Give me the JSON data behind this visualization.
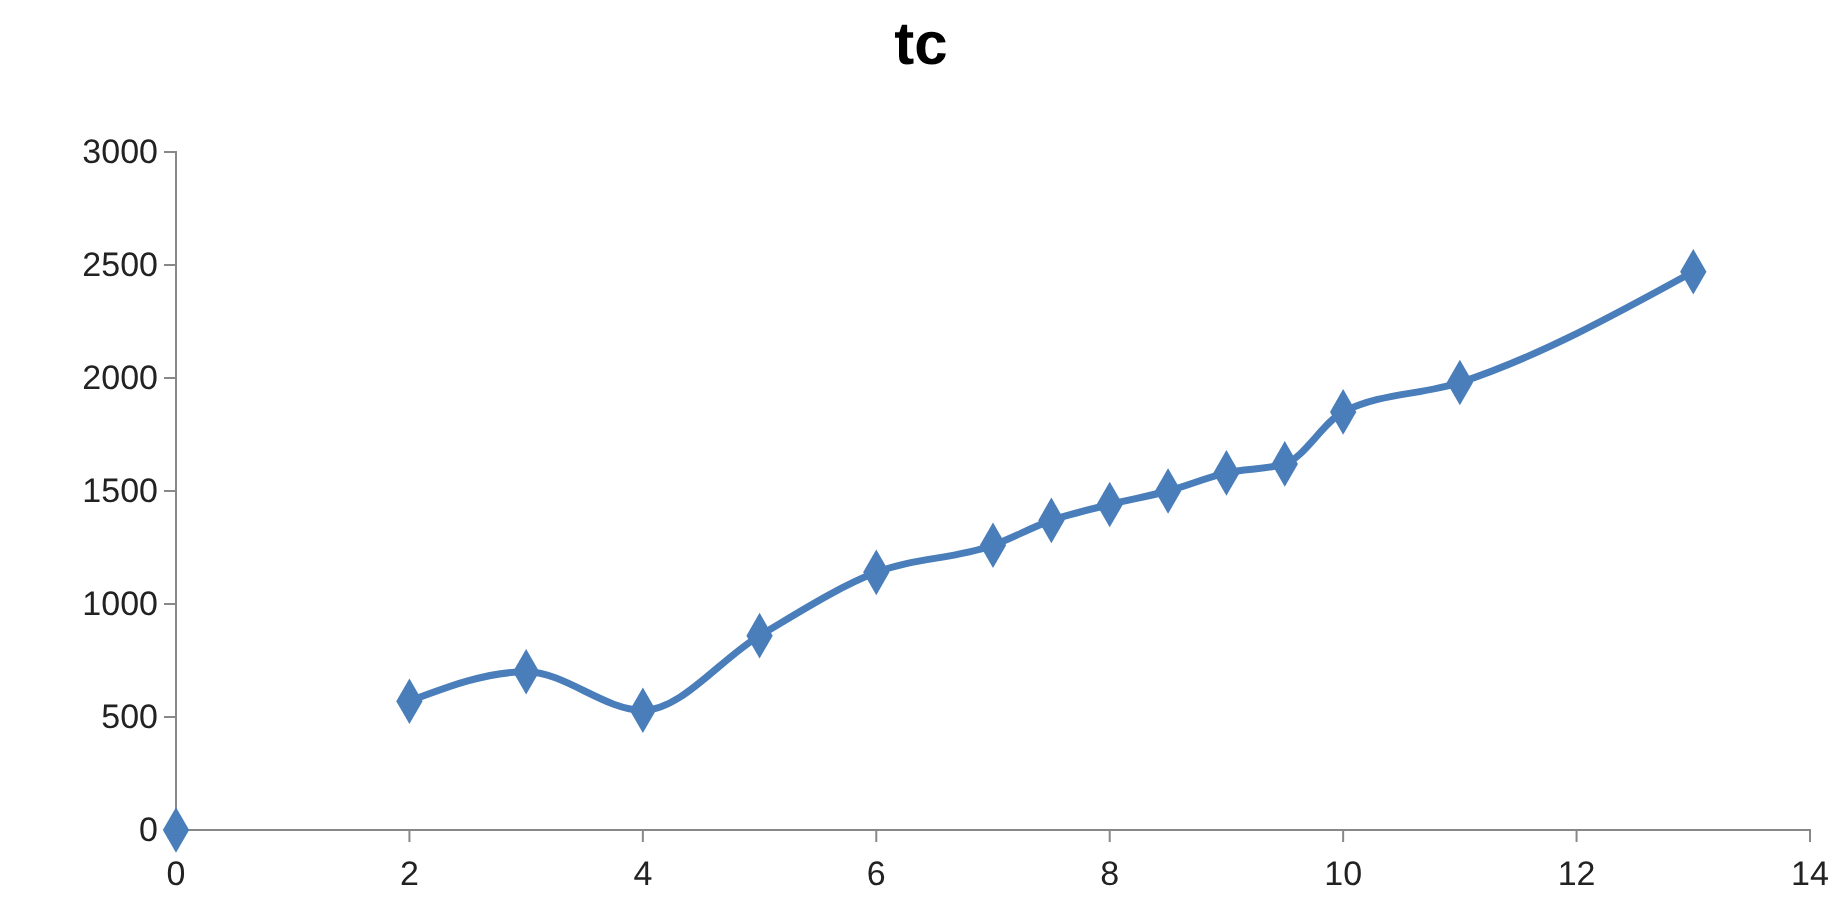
{
  "chart_data": {
    "type": "line",
    "title": "tc",
    "marker": "diamond",
    "line_style": "solid",
    "grid": false,
    "xlim": [
      0,
      14
    ],
    "xticks": [
      0,
      2,
      4,
      6,
      8,
      10,
      12,
      14
    ],
    "ylim": [
      0,
      3000
    ],
    "yticks": [
      0,
      500,
      1000,
      1500,
      2000,
      2500,
      3000
    ],
    "series": [
      {
        "type": "scatter",
        "color": "#4a7ebb",
        "x": [
          0
        ],
        "values": [
          0
        ]
      },
      {
        "color": "#4a7ebb",
        "x": [
          2,
          3,
          4,
          5,
          6,
          7,
          7.5,
          8,
          8.5,
          9,
          9.5,
          10,
          11,
          13
        ],
        "values": [
          570,
          700,
          530,
          860,
          1140,
          1260,
          1370,
          1440,
          1500,
          1580,
          1620,
          1850,
          1980,
          2470
        ]
      }
    ]
  }
}
